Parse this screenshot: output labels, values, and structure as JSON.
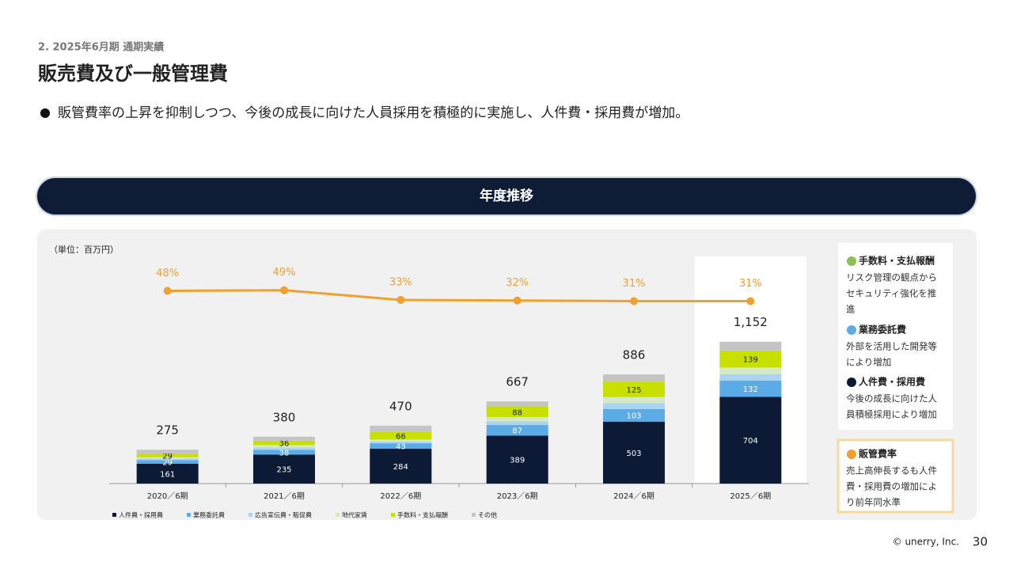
{
  "header": {
    "section": "2. 2025年6月期 通期実績",
    "title": "販売費及び一般管理費",
    "bullet": "販管費率の上昇を抑制しつつ、今後の成長に向けた人員採用を積極的に実施し、人件費・採用費が増加。"
  },
  "banner": "年度推移",
  "chart_data": {
    "type": "bar",
    "stacked": true,
    "unit_label": "（単位：百万円）",
    "categories": [
      "2020／6期",
      "2021／6期",
      "2022／6期",
      "2023／6期",
      "2024／6期",
      "2025／6期"
    ],
    "series": [
      {
        "name": "人件費・採用費",
        "color": "#0d1a36",
        "labels": true,
        "values": [
          161,
          235,
          284,
          389,
          503,
          704
        ]
      },
      {
        "name": "業務委託費",
        "color": "#5aabe6",
        "labels": true,
        "values": [
          29,
          38,
          43,
          87,
          103,
          132
        ]
      },
      {
        "name": "広告宣伝費・販促費",
        "color": "#a9d4f2",
        "labels": false,
        "values": [
          12,
          20,
          15,
          30,
          47,
          53
        ]
      },
      {
        "name": "地代家賃",
        "color": "#d6e9c6",
        "labels": false,
        "values": [
          12,
          19,
          15,
          33,
          50,
          53
        ]
      },
      {
        "name": "手数料・支払報酬",
        "color": "#c8e000",
        "labels": true,
        "values": [
          29,
          36,
          66,
          88,
          125,
          139
        ]
      },
      {
        "name": "その他",
        "color": "#c4c4c4",
        "labels": false,
        "values": [
          32,
          32,
          47,
          40,
          58,
          71
        ]
      }
    ],
    "totals": [
      275,
      380,
      470,
      667,
      886,
      1152
    ],
    "total_labels": [
      "275",
      "380",
      "470",
      "667",
      "886",
      "1,152"
    ],
    "ylim": [
      0,
      1870
    ],
    "line": {
      "type": "line",
      "color": "#f0a030",
      "axis": "y2",
      "values": [
        48,
        49,
        33,
        32,
        31,
        31
      ],
      "value_labels": [
        "48%",
        "49%",
        "33%",
        "32%",
        "31%",
        "31%"
      ]
    },
    "y2lim": [
      -270,
      110
    ],
    "legend_position": "bottom"
  },
  "notes": [
    {
      "title": "手数料・支払報酬",
      "color": "#8cc152",
      "lines": [
        "リスク管理の観点から",
        "セキュリティ強化を推",
        "進"
      ]
    },
    {
      "title": "業務委託費",
      "color": "#5aabe6",
      "lines": [
        "外部を活用した開発等",
        "により増加"
      ]
    },
    {
      "title": "人件費・採用費",
      "color": "#0d1a36",
      "lines": [
        "今後の成長に向けた人",
        "員積極採用により増加"
      ]
    },
    {
      "title": "販管費率",
      "color": "#f0a030",
      "lines": [
        "売上高伸長するも人件",
        "費・採用費の増加によ",
        "り前年同水準"
      ]
    }
  ],
  "footer": {
    "copyright": "© unerry, Inc.",
    "page": 30
  }
}
